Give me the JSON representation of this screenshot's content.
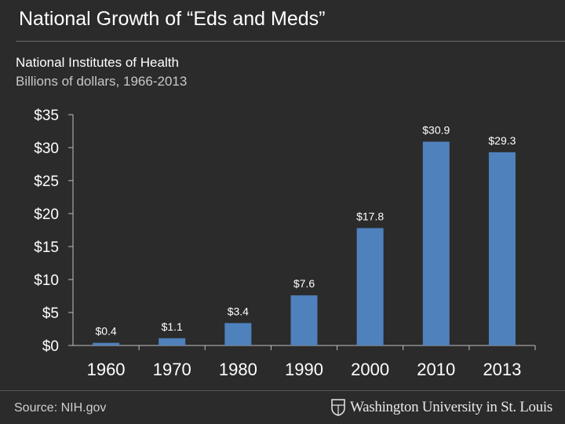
{
  "slide": {
    "title": "National Growth of “Eds and Meds”",
    "source": "Source: NIH.gov",
    "logo_text": "Washington University in St. Louis"
  },
  "colors": {
    "background": "#2b2b2b",
    "bar": "#4f81bd",
    "text": "#ffffff"
  },
  "chart_data": {
    "type": "bar",
    "title": "National Institutes of Health",
    "subtitle": "Billions of dollars, 1966-2013",
    "categories": [
      "1960",
      "1970",
      "1980",
      "1990",
      "2000",
      "2010",
      "2013"
    ],
    "values": [
      0.4,
      1.1,
      3.4,
      7.6,
      17.8,
      30.9,
      29.3
    ],
    "data_labels": [
      "$0.4",
      "$1.1",
      "$3.4",
      "$7.6",
      "$17.8",
      "$30.9",
      "$29.3"
    ],
    "y_ticks": [
      0,
      5,
      10,
      15,
      20,
      25,
      30,
      35
    ],
    "y_tick_labels": [
      "$0",
      "$5",
      "$10",
      "$15",
      "$20",
      "$25",
      "$30",
      "$35"
    ],
    "ylim": [
      0,
      35
    ],
    "xlabel": "",
    "ylabel": "",
    "grid": false,
    "legend": "none"
  }
}
